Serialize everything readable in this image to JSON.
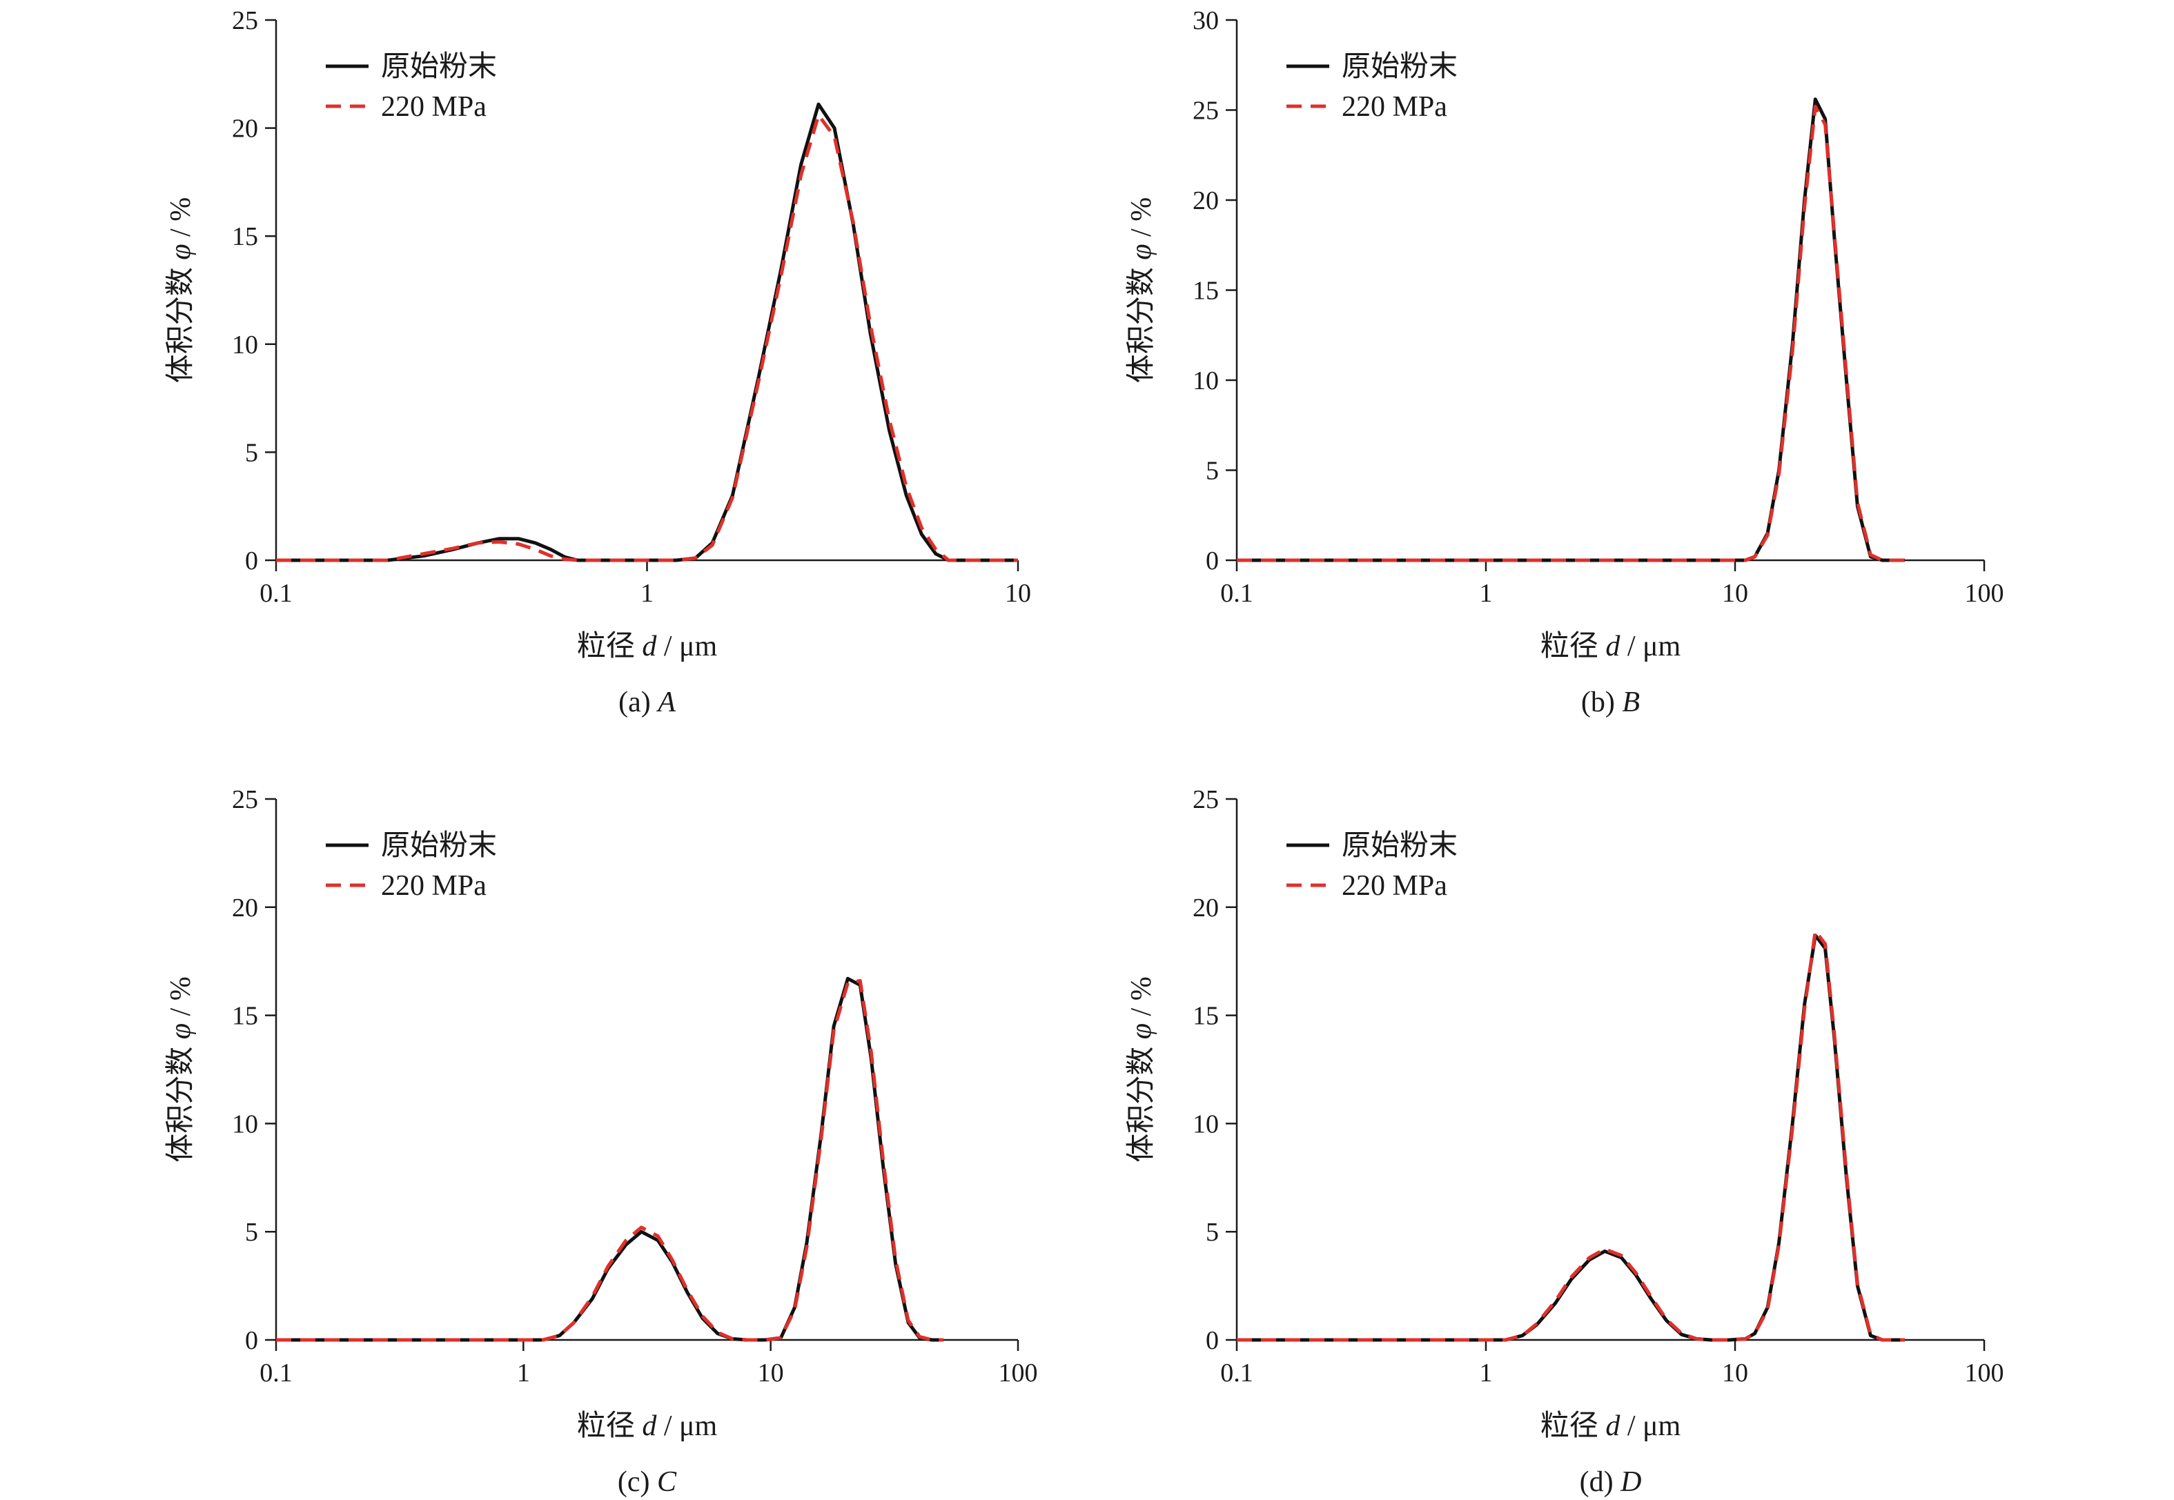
{
  "chart_data": [
    {
      "type": "line",
      "caption": "(a) A",
      "caption_prefix": "(a) ",
      "caption_letter": "A",
      "xlabel": "粒径 d / μm",
      "xlabel_prefix": "粒径 ",
      "xlabel_var": "d",
      "xlabel_unit": " / μm",
      "ylabel": "体积分数 φ / %",
      "ylabel_prefix": "体积分数 ",
      "ylabel_var": "φ",
      "ylabel_unit": " / %",
      "x_scale": "log",
      "xlim": [
        0.1,
        10
      ],
      "ylim": [
        0,
        25
      ],
      "x_ticks": [
        0.1,
        1,
        10
      ],
      "x_tick_labels": [
        "0.1",
        "1",
        "10"
      ],
      "y_ticks": [
        0,
        5,
        10,
        15,
        20,
        25
      ],
      "y_tick_labels": [
        "0",
        "5",
        "10",
        "15",
        "20",
        "25"
      ],
      "legend_position": "top-left",
      "series": [
        {
          "name": "原始粉末",
          "color": "#111111",
          "style": "solid",
          "x": [
            0.1,
            0.2,
            0.25,
            0.3,
            0.35,
            0.4,
            0.45,
            0.5,
            0.55,
            0.6,
            0.65,
            0.75,
            1.0,
            1.2,
            1.35,
            1.5,
            1.7,
            2.0,
            2.3,
            2.6,
            2.9,
            3.2,
            3.6,
            4.0,
            4.5,
            5.0,
            5.5,
            6.0,
            6.5,
            7.5,
            10
          ],
          "y": [
            0,
            0,
            0.2,
            0.5,
            0.8,
            1.0,
            1.0,
            0.8,
            0.5,
            0.15,
            0,
            0,
            0,
            0,
            0.1,
            0.8,
            3.0,
            8.5,
            13.5,
            18.3,
            21.1,
            20.0,
            15.5,
            10.5,
            6.0,
            3.0,
            1.2,
            0.3,
            0,
            0,
            0
          ]
        },
        {
          "name": "220 MPa",
          "color": "#e0302a",
          "style": "dashed",
          "x": [
            0.1,
            0.2,
            0.25,
            0.3,
            0.35,
            0.4,
            0.45,
            0.5,
            0.55,
            0.6,
            0.65,
            0.75,
            1.0,
            1.2,
            1.35,
            1.5,
            1.7,
            2.0,
            2.3,
            2.6,
            2.9,
            3.2,
            3.6,
            4.0,
            4.5,
            5.0,
            5.5,
            6.0,
            6.5,
            7.5,
            10
          ],
          "y": [
            0,
            0,
            0.3,
            0.55,
            0.8,
            0.85,
            0.75,
            0.5,
            0.2,
            0.05,
            0,
            0,
            0,
            0,
            0.1,
            0.7,
            2.9,
            8.3,
            13.2,
            17.8,
            20.6,
            19.6,
            15.6,
            10.9,
            6.5,
            3.4,
            1.5,
            0.5,
            0,
            0,
            0
          ]
        }
      ]
    },
    {
      "type": "line",
      "caption": "(b) B",
      "caption_prefix": "(b) ",
      "caption_letter": "B",
      "xlabel": "粒径 d / μm",
      "xlabel_prefix": "粒径 ",
      "xlabel_var": "d",
      "xlabel_unit": " / μm",
      "ylabel": "体积分数 φ / %",
      "ylabel_prefix": "体积分数 ",
      "ylabel_var": "φ",
      "ylabel_unit": " / %",
      "x_scale": "log",
      "xlim": [
        0.1,
        100
      ],
      "ylim": [
        0,
        30
      ],
      "x_ticks": [
        0.1,
        1,
        10,
        100
      ],
      "x_tick_labels": [
        "0.1",
        "1",
        "10",
        "100"
      ],
      "y_ticks": [
        0,
        5,
        10,
        15,
        20,
        25,
        30
      ],
      "y_tick_labels": [
        "0",
        "5",
        "10",
        "15",
        "20",
        "25",
        "30"
      ],
      "legend_position": "top-left",
      "series": [
        {
          "name": "原始粉末",
          "color": "#111111",
          "style": "solid",
          "x": [
            0.1,
            1,
            10,
            11,
            12,
            13.5,
            15,
            17,
            19,
            21,
            23,
            25,
            28,
            31,
            35,
            39,
            43,
            48
          ],
          "y": [
            0,
            0,
            0,
            0,
            0.2,
            1.5,
            5.0,
            12.0,
            20.0,
            25.6,
            24.5,
            18.0,
            10.0,
            3.0,
            0.2,
            0,
            0,
            0
          ]
        },
        {
          "name": "220 MPa",
          "color": "#e0302a",
          "style": "dashed",
          "x": [
            0.1,
            1,
            10,
            11,
            12,
            13.5,
            15,
            17,
            19,
            21,
            23,
            25,
            28,
            31,
            35,
            39,
            43,
            48
          ],
          "y": [
            0,
            0,
            0,
            0,
            0.2,
            1.4,
            4.8,
            11.6,
            19.6,
            25.2,
            24.2,
            18.2,
            10.3,
            3.2,
            0.3,
            0,
            0,
            0
          ]
        }
      ]
    },
    {
      "type": "line",
      "caption": "(c) C",
      "caption_prefix": "(c) ",
      "caption_letter": "C",
      "xlabel": "粒径 d / μm",
      "xlabel_prefix": "粒径 ",
      "xlabel_var": "d",
      "xlabel_unit": " / μm",
      "ylabel": "体积分数 φ / %",
      "ylabel_prefix": "体积分数 ",
      "ylabel_var": "φ",
      "ylabel_unit": " / %",
      "x_scale": "log",
      "xlim": [
        0.1,
        100
      ],
      "ylim": [
        0,
        25
      ],
      "x_ticks": [
        0.1,
        1,
        10,
        100
      ],
      "x_tick_labels": [
        "0.1",
        "1",
        "10",
        "100"
      ],
      "y_ticks": [
        0,
        5,
        10,
        15,
        20,
        25
      ],
      "y_tick_labels": [
        "0",
        "5",
        "10",
        "15",
        "20",
        "25"
      ],
      "legend_position": "top-left",
      "series": [
        {
          "name": "原始粉末",
          "color": "#111111",
          "style": "solid",
          "x": [
            0.1,
            1,
            1.2,
            1.4,
            1.6,
            1.9,
            2.2,
            2.6,
            3.0,
            3.5,
            4.0,
            4.6,
            5.3,
            6.1,
            7.0,
            8.0,
            9.5,
            11,
            12.5,
            14,
            16,
            18,
            20.5,
            23,
            25.5,
            28.5,
            32,
            36,
            40,
            45,
            50
          ],
          "y": [
            0,
            0,
            0,
            0.2,
            0.8,
            1.9,
            3.3,
            4.4,
            5.0,
            4.6,
            3.6,
            2.2,
            1.0,
            0.3,
            0.05,
            0,
            0,
            0.1,
            1.5,
            4.5,
            9.5,
            14.5,
            16.7,
            16.4,
            13.0,
            8.0,
            3.5,
            0.8,
            0.1,
            0,
            0
          ]
        },
        {
          "name": "220 MPa",
          "color": "#e0302a",
          "style": "dashed",
          "x": [
            0.1,
            1,
            1.2,
            1.4,
            1.6,
            1.9,
            2.2,
            2.6,
            3.0,
            3.5,
            4.0,
            4.6,
            5.3,
            6.1,
            7.0,
            8.0,
            9.5,
            11,
            12.5,
            14,
            16,
            18,
            20.5,
            23,
            25.5,
            28.5,
            32,
            36,
            40,
            45,
            50
          ],
          "y": [
            0,
            0,
            0,
            0.2,
            0.8,
            2.0,
            3.4,
            4.6,
            5.2,
            4.8,
            3.7,
            2.3,
            1.1,
            0.35,
            0.05,
            0,
            0,
            0.1,
            1.4,
            4.3,
            9.3,
            14.3,
            16.5,
            16.6,
            13.3,
            8.3,
            3.7,
            0.9,
            0.15,
            0,
            0
          ]
        }
      ]
    },
    {
      "type": "line",
      "caption": "(d) D",
      "caption_prefix": "(d) ",
      "caption_letter": "D",
      "xlabel": "粒径 d / μm",
      "xlabel_prefix": "粒径 ",
      "xlabel_var": "d",
      "xlabel_unit": " / μm",
      "ylabel": "体积分数 φ / %",
      "ylabel_prefix": "体积分数 ",
      "ylabel_var": "φ",
      "ylabel_unit": " / %",
      "x_scale": "log",
      "xlim": [
        0.1,
        100
      ],
      "ylim": [
        0,
        25
      ],
      "x_ticks": [
        0.1,
        1,
        10,
        100
      ],
      "x_tick_labels": [
        "0.1",
        "1",
        "10",
        "100"
      ],
      "y_ticks": [
        0,
        5,
        10,
        15,
        20,
        25
      ],
      "y_tick_labels": [
        "0",
        "5",
        "10",
        "15",
        "20",
        "25"
      ],
      "legend_position": "top-left",
      "series": [
        {
          "name": "原始粉末",
          "color": "#111111",
          "style": "solid",
          "x": [
            0.1,
            1,
            1.2,
            1.4,
            1.6,
            1.9,
            2.2,
            2.6,
            3.0,
            3.5,
            4.0,
            4.6,
            5.3,
            6.1,
            7.0,
            8.0,
            9.5,
            11,
            12,
            13.5,
            15,
            17,
            19,
            21,
            23,
            25,
            28,
            31,
            35,
            39,
            43,
            48
          ],
          "y": [
            0,
            0,
            0,
            0.2,
            0.7,
            1.7,
            2.8,
            3.7,
            4.1,
            3.8,
            3.0,
            1.9,
            0.9,
            0.25,
            0.05,
            0,
            0,
            0.05,
            0.3,
            1.5,
            4.5,
            10.0,
            15.5,
            18.7,
            18.1,
            14.0,
            7.5,
            2.5,
            0.2,
            0,
            0,
            0
          ]
        },
        {
          "name": "220 MPa",
          "color": "#e0302a",
          "style": "dashed",
          "x": [
            0.1,
            1,
            1.2,
            1.4,
            1.6,
            1.9,
            2.2,
            2.6,
            3.0,
            3.5,
            4.0,
            4.6,
            5.3,
            6.1,
            7.0,
            8.0,
            9.5,
            11,
            12,
            13.5,
            15,
            17,
            19,
            21,
            23,
            25,
            28,
            31,
            35,
            39,
            43,
            48
          ],
          "y": [
            0,
            0,
            0,
            0.2,
            0.75,
            1.8,
            2.9,
            3.8,
            4.2,
            3.9,
            3.1,
            2.0,
            0.95,
            0.3,
            0.05,
            0,
            0,
            0.05,
            0.3,
            1.4,
            4.4,
            9.8,
            15.3,
            18.9,
            18.3,
            14.2,
            7.7,
            2.6,
            0.25,
            0,
            0,
            0
          ]
        }
      ]
    }
  ]
}
